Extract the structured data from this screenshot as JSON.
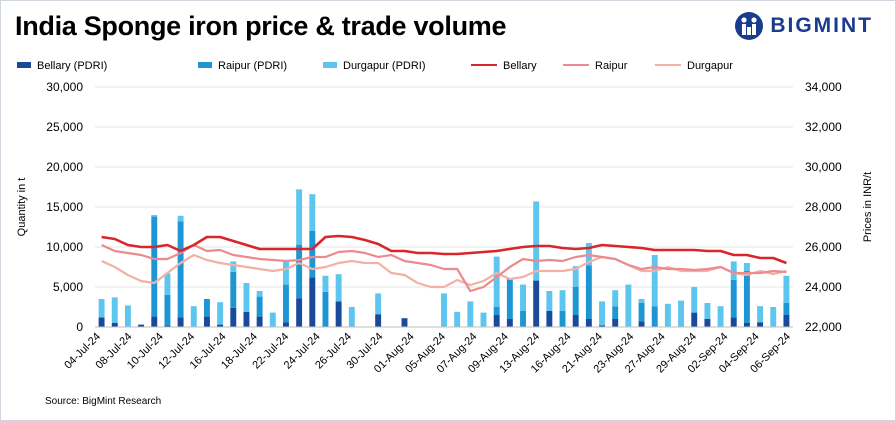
{
  "header": {
    "title": "India Sponge iron price & trade volume",
    "brand": "BIGMINT"
  },
  "footer": {
    "source": "Source: BigMint Research"
  },
  "colors": {
    "bellary_bar": "#1a4a9a",
    "raipur_bar": "#1f96d4",
    "durgapur_bar": "#5ec6ee",
    "bellary_line": "#d8262c",
    "raipur_line": "#ec8a8e",
    "durgapur_line": "#f3b1a6",
    "brand": "#1a3c8f"
  },
  "chart_data": {
    "type": "bar+line",
    "title": "India Sponge iron price & trade volume",
    "ylabel_left": "Quantity in t",
    "ylabel_right": "Prices in INR/t",
    "ylim_left": [
      0,
      30000
    ],
    "ylim_right": [
      22000,
      34000
    ],
    "yticks_left": [
      "0",
      "5,000",
      "10,000",
      "15,000",
      "20,000",
      "25,000",
      "30,000"
    ],
    "yticks_right": [
      "22,000",
      "24,000",
      "26,000",
      "28,000",
      "30,000",
      "32,000",
      "34,000"
    ],
    "legend": [
      "Bellary (PDRI)",
      "Raipur (PDRI)",
      "Durgapur (PDRI)",
      "Bellary",
      "Raipur",
      "Durgapur"
    ],
    "tick_labels": [
      "04-Jul-24",
      "08-Jul-24",
      "10-Jul-24",
      "12-Jul-24",
      "16-Jul-24",
      "18-Jul-24",
      "22-Jul-24",
      "24-Jul-24",
      "26-Jul-24",
      "30-Jul-24",
      "01-Aug-24",
      "05-Aug-24",
      "07-Aug-24",
      "09-Aug-24",
      "13-Aug-24",
      "16-Aug-24",
      "21-Aug-24",
      "23-Aug-24",
      "27-Aug-24",
      "29-Aug-24",
      "02-Sep-24",
      "04-Sep-24",
      "06-Sep-24"
    ],
    "stacked_series": [
      {
        "name": "Bellary (PDRI)",
        "values": [
          1200,
          500,
          0,
          300,
          1300,
          200,
          1200,
          0,
          1300,
          300,
          2400,
          1900,
          1300,
          0,
          600,
          3600,
          6200,
          0,
          3200,
          0,
          0,
          1600,
          0,
          1100,
          0,
          0,
          0,
          0,
          0,
          0,
          1500,
          1000,
          0,
          5800,
          2000,
          0,
          1500,
          1000,
          200,
          1000,
          0,
          700,
          0,
          0,
          0,
          1800,
          1000,
          0,
          1200,
          500,
          600,
          0,
          1500
        ]
      },
      {
        "name": "Raipur (PDRI)",
        "values": [
          0,
          0,
          0,
          0,
          12500,
          3800,
          12000,
          0,
          2200,
          0,
          4500,
          0,
          2500,
          0,
          4700,
          6700,
          5800,
          4400,
          0,
          0,
          0,
          0,
          0,
          0,
          0,
          0,
          0,
          0,
          0,
          0,
          1000,
          5000,
          2000,
          0,
          0,
          2000,
          3500,
          6700,
          0,
          1600,
          0,
          2300,
          2600,
          0,
          0,
          0,
          0,
          0,
          4700,
          6500,
          0,
          0,
          1500
        ]
      },
      {
        "name": "Durgapur (PDRI)",
        "values": [
          2300,
          3200,
          2700,
          0,
          200,
          2700,
          700,
          2600,
          0,
          2800,
          1300,
          3600,
          700,
          1800,
          2900,
          6900,
          4600,
          2000,
          3400,
          2500,
          0,
          2600,
          0,
          0,
          0,
          0,
          4200,
          1900,
          3200,
          1800,
          6300,
          0,
          3300,
          9900,
          2500,
          2600,
          2600,
          2800,
          3000,
          2000,
          5300,
          500,
          6400,
          2900,
          3300,
          3200,
          2000,
          2600,
          2300,
          1000,
          2000,
          2500,
          3400
        ]
      }
    ],
    "line_series": [
      {
        "name": "Bellary",
        "values": [
          26500,
          26400,
          26100,
          26000,
          26000,
          26100,
          25800,
          26100,
          26500,
          26500,
          26300,
          26100,
          25900,
          25900,
          25900,
          25900,
          25900,
          26500,
          26550,
          26500,
          26350,
          26150,
          25800,
          25800,
          25700,
          25700,
          25650,
          25650,
          25700,
          25750,
          25800,
          25900,
          26000,
          26050,
          26050,
          25950,
          25900,
          25950,
          26100,
          26050,
          26000,
          25950,
          25850,
          25850,
          25850,
          25850,
          25800,
          25800,
          25600,
          25600,
          25450,
          25450,
          25200
        ]
      },
      {
        "name": "Raipur",
        "values": [
          26100,
          25800,
          25700,
          25600,
          25400,
          25400,
          25700,
          26100,
          25800,
          25850,
          25600,
          25500,
          25400,
          25350,
          25300,
          25350,
          25500,
          25500,
          25750,
          25800,
          25700,
          25500,
          25600,
          25300,
          25200,
          25100,
          24900,
          24900,
          23800,
          24000,
          24500,
          25000,
          25400,
          25300,
          25350,
          25300,
          25500,
          25600,
          25500,
          25400,
          25100,
          24900,
          25000,
          24900,
          24900,
          24850,
          24900,
          25000,
          24700,
          24700,
          24700,
          24800,
          24750
        ]
      },
      {
        "name": "Durgapur",
        "values": [
          25300,
          25000,
          24600,
          24300,
          24200,
          24700,
          25200,
          25600,
          25350,
          25200,
          25100,
          25000,
          24900,
          24800,
          24900,
          25200,
          24900,
          25000,
          25200,
          25300,
          25200,
          25200,
          24700,
          24600,
          24200,
          24000,
          24000,
          24350,
          24100,
          24300,
          24700,
          24400,
          24500,
          24800,
          24800,
          24800,
          24900,
          25250,
          25500,
          25400,
          25100,
          24800,
          24800,
          25000,
          24800,
          24800,
          24800,
          25000,
          24700,
          24600,
          24800,
          24650,
          24800
        ]
      }
    ]
  }
}
